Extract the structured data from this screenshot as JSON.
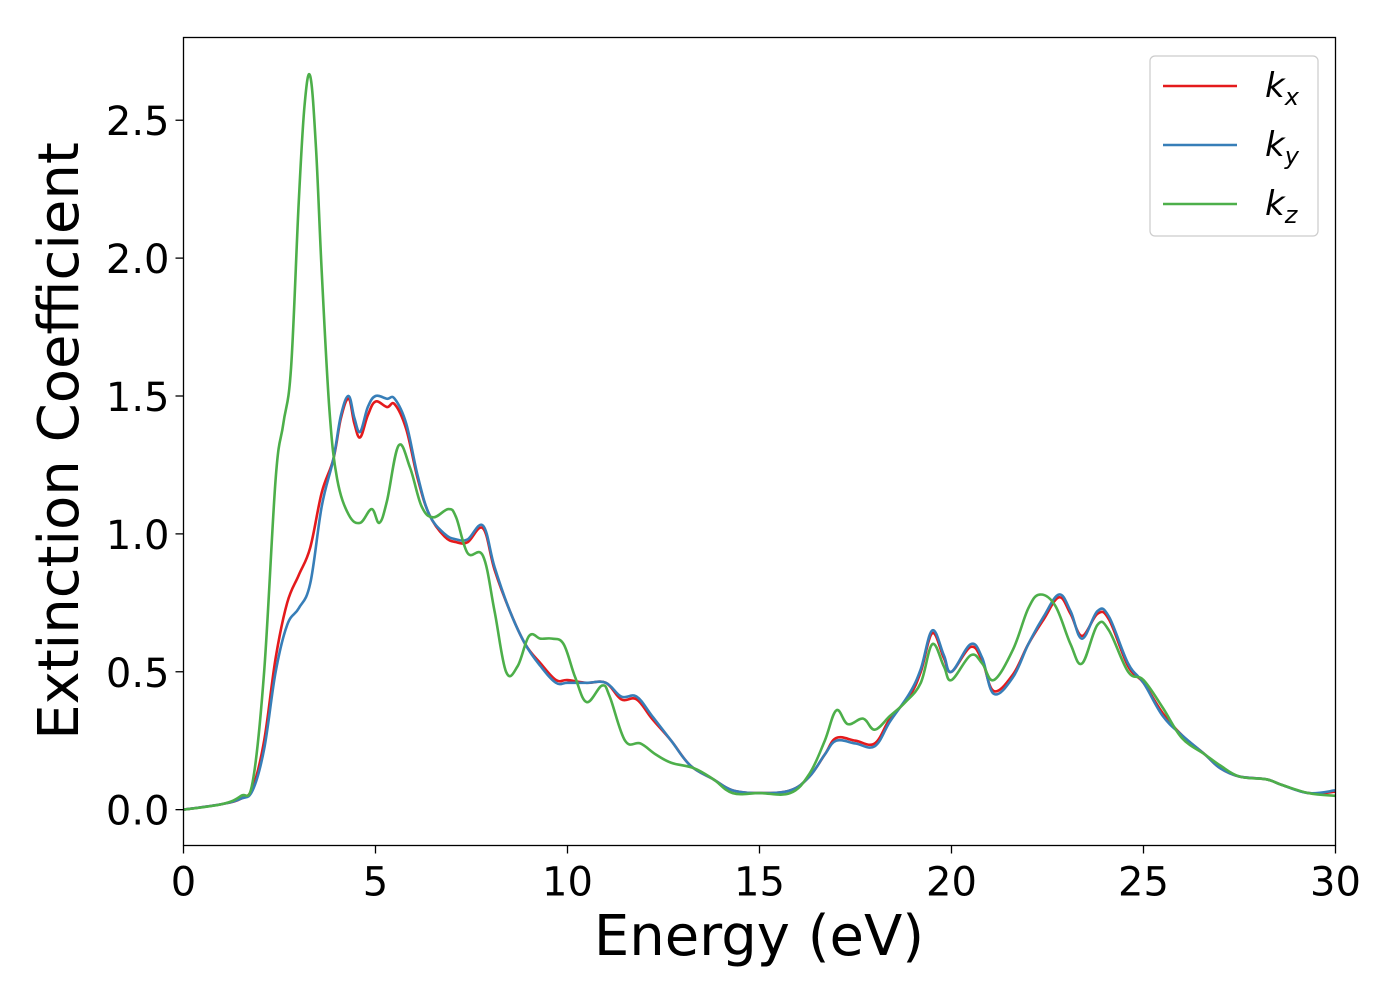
{
  "chart_data": {
    "type": "line",
    "title": "",
    "xlabel": "Energy (eV)",
    "ylabel": "Extinction Coefficient",
    "xlim": [
      0,
      30
    ],
    "ylim": [
      -0.13,
      2.8
    ],
    "xticks": [
      0,
      5,
      10,
      15,
      20,
      25,
      30
    ],
    "xtick_labels": [
      "0",
      "5",
      "10",
      "15",
      "20",
      "25",
      "30"
    ],
    "yticks": [
      0.0,
      0.5,
      1.0,
      1.5,
      2.0,
      2.5
    ],
    "ytick_labels": [
      "0.0",
      "0.5",
      "1.0",
      "1.5",
      "2.0",
      "2.5"
    ],
    "grid": false,
    "legend_position": "top-right",
    "series": [
      {
        "name": "kx",
        "base": "k",
        "sub": "x",
        "color": "#e41a1c",
        "points": [
          [
            0,
            0
          ],
          [
            1,
            0.02
          ],
          [
            1.5,
            0.04
          ],
          [
            1.8,
            0.08
          ],
          [
            2.1,
            0.25
          ],
          [
            2.4,
            0.55
          ],
          [
            2.7,
            0.75
          ],
          [
            3.0,
            0.85
          ],
          [
            3.3,
            0.95
          ],
          [
            3.6,
            1.15
          ],
          [
            3.9,
            1.27
          ],
          [
            4.1,
            1.42
          ],
          [
            4.3,
            1.49
          ],
          [
            4.45,
            1.4
          ],
          [
            4.6,
            1.35
          ],
          [
            4.8,
            1.43
          ],
          [
            5.0,
            1.48
          ],
          [
            5.3,
            1.46
          ],
          [
            5.5,
            1.47
          ],
          [
            5.8,
            1.38
          ],
          [
            6.1,
            1.2
          ],
          [
            6.4,
            1.07
          ],
          [
            6.8,
            0.99
          ],
          [
            7.1,
            0.97
          ],
          [
            7.4,
            0.97
          ],
          [
            7.8,
            1.02
          ],
          [
            8.1,
            0.87
          ],
          [
            8.5,
            0.72
          ],
          [
            8.9,
            0.6
          ],
          [
            9.3,
            0.53
          ],
          [
            9.7,
            0.47
          ],
          [
            10.0,
            0.47
          ],
          [
            10.5,
            0.46
          ],
          [
            11.0,
            0.46
          ],
          [
            11.4,
            0.4
          ],
          [
            11.8,
            0.4
          ],
          [
            12.2,
            0.33
          ],
          [
            12.7,
            0.25
          ],
          [
            13.2,
            0.16
          ],
          [
            13.8,
            0.11
          ],
          [
            14.3,
            0.07
          ],
          [
            15.0,
            0.06
          ],
          [
            15.8,
            0.07
          ],
          [
            16.3,
            0.12
          ],
          [
            16.7,
            0.2
          ],
          [
            17.0,
            0.26
          ],
          [
            17.5,
            0.25
          ],
          [
            18.0,
            0.24
          ],
          [
            18.4,
            0.33
          ],
          [
            18.9,
            0.41
          ],
          [
            19.2,
            0.5
          ],
          [
            19.5,
            0.64
          ],
          [
            19.8,
            0.55
          ],
          [
            20.0,
            0.5
          ],
          [
            20.5,
            0.59
          ],
          [
            20.8,
            0.54
          ],
          [
            21.1,
            0.43
          ],
          [
            21.6,
            0.49
          ],
          [
            22.0,
            0.6
          ],
          [
            22.4,
            0.69
          ],
          [
            22.8,
            0.77
          ],
          [
            23.1,
            0.71
          ],
          [
            23.4,
            0.63
          ],
          [
            23.8,
            0.71
          ],
          [
            24.1,
            0.69
          ],
          [
            24.6,
            0.52
          ],
          [
            25.0,
            0.46
          ],
          [
            25.5,
            0.35
          ],
          [
            26.0,
            0.27
          ],
          [
            26.6,
            0.2
          ],
          [
            27.0,
            0.15
          ],
          [
            27.5,
            0.12
          ],
          [
            28.2,
            0.11
          ],
          [
            28.6,
            0.09
          ],
          [
            29.3,
            0.06
          ],
          [
            30,
            0.065
          ]
        ]
      },
      {
        "name": "ky",
        "base": "k",
        "sub": "y",
        "color": "#377eb8",
        "points": [
          [
            0,
            0
          ],
          [
            1,
            0.02
          ],
          [
            1.5,
            0.04
          ],
          [
            1.8,
            0.07
          ],
          [
            2.1,
            0.22
          ],
          [
            2.4,
            0.5
          ],
          [
            2.7,
            0.67
          ],
          [
            3.0,
            0.73
          ],
          [
            3.3,
            0.82
          ],
          [
            3.6,
            1.1
          ],
          [
            3.9,
            1.27
          ],
          [
            4.1,
            1.43
          ],
          [
            4.3,
            1.5
          ],
          [
            4.45,
            1.42
          ],
          [
            4.6,
            1.37
          ],
          [
            4.8,
            1.46
          ],
          [
            5.0,
            1.5
          ],
          [
            5.3,
            1.49
          ],
          [
            5.5,
            1.49
          ],
          [
            5.8,
            1.4
          ],
          [
            6.1,
            1.21
          ],
          [
            6.4,
            1.07
          ],
          [
            6.8,
            1.0
          ],
          [
            7.1,
            0.98
          ],
          [
            7.4,
            0.98
          ],
          [
            7.8,
            1.03
          ],
          [
            8.1,
            0.88
          ],
          [
            8.5,
            0.72
          ],
          [
            8.9,
            0.6
          ],
          [
            9.3,
            0.52
          ],
          [
            9.7,
            0.46
          ],
          [
            10.0,
            0.46
          ],
          [
            10.5,
            0.46
          ],
          [
            11.0,
            0.46
          ],
          [
            11.4,
            0.41
          ],
          [
            11.8,
            0.41
          ],
          [
            12.2,
            0.34
          ],
          [
            12.7,
            0.25
          ],
          [
            13.2,
            0.16
          ],
          [
            13.8,
            0.11
          ],
          [
            14.3,
            0.07
          ],
          [
            15.0,
            0.06
          ],
          [
            15.8,
            0.07
          ],
          [
            16.3,
            0.12
          ],
          [
            16.7,
            0.2
          ],
          [
            17.0,
            0.25
          ],
          [
            17.5,
            0.24
          ],
          [
            18.0,
            0.23
          ],
          [
            18.4,
            0.32
          ],
          [
            18.9,
            0.42
          ],
          [
            19.2,
            0.51
          ],
          [
            19.5,
            0.65
          ],
          [
            19.8,
            0.56
          ],
          [
            20.0,
            0.5
          ],
          [
            20.5,
            0.6
          ],
          [
            20.8,
            0.55
          ],
          [
            21.1,
            0.42
          ],
          [
            21.6,
            0.48
          ],
          [
            22.0,
            0.6
          ],
          [
            22.4,
            0.7
          ],
          [
            22.8,
            0.78
          ],
          [
            23.1,
            0.72
          ],
          [
            23.4,
            0.62
          ],
          [
            23.8,
            0.72
          ],
          [
            24.1,
            0.7
          ],
          [
            24.6,
            0.53
          ],
          [
            25.0,
            0.46
          ],
          [
            25.5,
            0.34
          ],
          [
            26.0,
            0.27
          ],
          [
            26.6,
            0.2
          ],
          [
            27.0,
            0.15
          ],
          [
            27.5,
            0.12
          ],
          [
            28.2,
            0.11
          ],
          [
            28.6,
            0.09
          ],
          [
            29.3,
            0.06
          ],
          [
            30,
            0.07
          ]
        ]
      },
      {
        "name": "kz",
        "base": "k",
        "sub": "z",
        "color": "#4daf4a",
        "points": [
          [
            0,
            0
          ],
          [
            1,
            0.02
          ],
          [
            1.5,
            0.05
          ],
          [
            1.8,
            0.1
          ],
          [
            2.1,
            0.5
          ],
          [
            2.4,
            1.2
          ],
          [
            2.6,
            1.4
          ],
          [
            2.8,
            1.6
          ],
          [
            3.0,
            2.2
          ],
          [
            3.15,
            2.55
          ],
          [
            3.3,
            2.66
          ],
          [
            3.45,
            2.4
          ],
          [
            3.6,
            1.95
          ],
          [
            3.8,
            1.45
          ],
          [
            4.0,
            1.2
          ],
          [
            4.3,
            1.07
          ],
          [
            4.6,
            1.04
          ],
          [
            4.9,
            1.09
          ],
          [
            5.1,
            1.04
          ],
          [
            5.3,
            1.12
          ],
          [
            5.6,
            1.32
          ],
          [
            5.9,
            1.24
          ],
          [
            6.2,
            1.1
          ],
          [
            6.5,
            1.06
          ],
          [
            6.9,
            1.09
          ],
          [
            7.1,
            1.06
          ],
          [
            7.4,
            0.93
          ],
          [
            7.8,
            0.92
          ],
          [
            8.1,
            0.72
          ],
          [
            8.4,
            0.5
          ],
          [
            8.7,
            0.52
          ],
          [
            9.0,
            0.63
          ],
          [
            9.3,
            0.62
          ],
          [
            9.6,
            0.62
          ],
          [
            9.9,
            0.6
          ],
          [
            10.2,
            0.48
          ],
          [
            10.5,
            0.39
          ],
          [
            10.9,
            0.45
          ],
          [
            11.1,
            0.41
          ],
          [
            11.5,
            0.25
          ],
          [
            11.9,
            0.24
          ],
          [
            12.3,
            0.2
          ],
          [
            12.7,
            0.17
          ],
          [
            13.3,
            0.15
          ],
          [
            13.8,
            0.11
          ],
          [
            14.3,
            0.06
          ],
          [
            15.0,
            0.06
          ],
          [
            15.8,
            0.06
          ],
          [
            16.3,
            0.13
          ],
          [
            16.7,
            0.25
          ],
          [
            17.0,
            0.36
          ],
          [
            17.3,
            0.31
          ],
          [
            17.7,
            0.33
          ],
          [
            18.0,
            0.29
          ],
          [
            18.4,
            0.34
          ],
          [
            18.8,
            0.39
          ],
          [
            19.2,
            0.46
          ],
          [
            19.5,
            0.6
          ],
          [
            19.8,
            0.52
          ],
          [
            20.0,
            0.47
          ],
          [
            20.5,
            0.56
          ],
          [
            20.8,
            0.53
          ],
          [
            21.1,
            0.47
          ],
          [
            21.6,
            0.58
          ],
          [
            22.0,
            0.73
          ],
          [
            22.3,
            0.78
          ],
          [
            22.7,
            0.74
          ],
          [
            23.1,
            0.6
          ],
          [
            23.4,
            0.53
          ],
          [
            23.8,
            0.67
          ],
          [
            24.1,
            0.65
          ],
          [
            24.6,
            0.5
          ],
          [
            25.0,
            0.47
          ],
          [
            25.5,
            0.37
          ],
          [
            26.0,
            0.26
          ],
          [
            26.6,
            0.2
          ],
          [
            27.0,
            0.16
          ],
          [
            27.5,
            0.12
          ],
          [
            28.2,
            0.11
          ],
          [
            28.6,
            0.09
          ],
          [
            29.3,
            0.06
          ],
          [
            30,
            0.05
          ]
        ]
      }
    ]
  }
}
